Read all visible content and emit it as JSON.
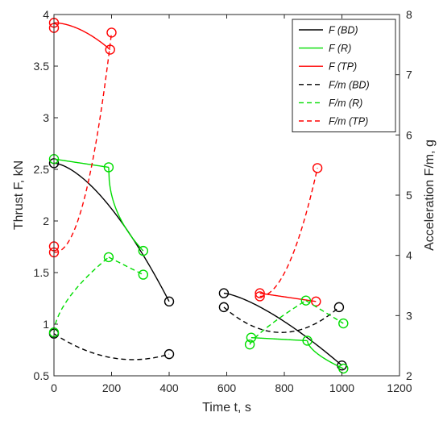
{
  "chart_data": {
    "type": "line",
    "xlabel": "Time  t, s",
    "ylabel_left": "Thrust  F, kN",
    "ylabel_right": "Acceleration  F/m, g",
    "xlim": [
      0,
      1200
    ],
    "ylim_left": [
      0.5,
      4
    ],
    "ylim_right": [
      2,
      8
    ],
    "xticks": [
      "0",
      "200",
      "400",
      "600",
      "800",
      "1000",
      "1200"
    ],
    "yticks_left": [
      "0.5",
      "1",
      "1.5",
      "2",
      "2.5",
      "3",
      "3.5",
      "4"
    ],
    "yticks_right": [
      "2",
      "3",
      "4",
      "5",
      "6",
      "7",
      "8"
    ],
    "legend_position": "top-right",
    "colors": {
      "BD": "#000000",
      "R": "#00dd00",
      "TP": "#ff0000"
    },
    "series": [
      {
        "name": "F (BD)",
        "axis": "left",
        "color": "#000000",
        "dash": "solid",
        "segments": [
          {
            "x": [
              0,
              400
            ],
            "y": [
              2.56,
              1.22
            ],
            "curve": 1.6
          },
          {
            "x": [
              590,
              1000
            ],
            "y": [
              1.3,
              0.6
            ],
            "curve": 1.4
          }
        ],
        "markers": [
          [
            0,
            2.56
          ],
          [
            400,
            1.22
          ],
          [
            590,
            1.3
          ],
          [
            1000,
            0.6
          ]
        ]
      },
      {
        "name": "F (R)",
        "axis": "left",
        "color": "#00dd00",
        "dash": "solid",
        "segments": [
          {
            "x": [
              0,
              190
            ],
            "y": [
              2.6,
              2.52
            ],
            "curve": 1.0
          },
          {
            "x": [
              190,
              310
            ],
            "y": [
              2.52,
              1.71
            ],
            "curve": 0.45
          },
          {
            "x": [
              685,
              880
            ],
            "y": [
              0.87,
              0.84
            ],
            "curve": 1.0
          },
          {
            "x": [
              880,
              1005
            ],
            "y": [
              0.84,
              0.57
            ],
            "curve": 0.6
          }
        ],
        "markers": [
          [
            0,
            2.6
          ],
          [
            190,
            2.52
          ],
          [
            310,
            1.71
          ],
          [
            685,
            0.87
          ],
          [
            880,
            0.84
          ],
          [
            1005,
            0.57
          ]
        ]
      },
      {
        "name": "F (TP)",
        "axis": "left",
        "color": "#ff0000",
        "dash": "solid",
        "segments": [
          {
            "x": [
              0,
              195
            ],
            "y": [
              3.92,
              3.66
            ],
            "curve": 1.8
          },
          {
            "x": [
              715,
              910
            ],
            "y": [
              1.3,
              1.22
            ],
            "curve": 1.0
          }
        ],
        "markers": [
          [
            0,
            3.92
          ],
          [
            0,
            3.87
          ],
          [
            195,
            3.66
          ],
          [
            715,
            1.3
          ],
          [
            910,
            1.22
          ]
        ]
      },
      {
        "name": "F/m (BD)",
        "axis": "right",
        "color": "#000000",
        "dash": "dashed",
        "segments": [
          {
            "x": [
              0,
              230,
              400
            ],
            "y": [
              2.7,
              2.28,
              2.36
            ],
            "curve": "quad"
          },
          {
            "x": [
              590,
              990
            ],
            "y": [
              3.14,
              3.14
            ],
            "curve": "sag",
            "sag": -0.42
          }
        ],
        "markers": [
          [
            0,
            2.7
          ],
          [
            400,
            2.36
          ],
          [
            590,
            3.14
          ],
          [
            990,
            3.14
          ]
        ]
      },
      {
        "name": "F/m (R)",
        "axis": "right",
        "color": "#00dd00",
        "dash": "dashed",
        "segments": [
          {
            "x": [
              0,
              190
            ],
            "y": [
              2.72,
              3.97
            ],
            "curve": 0.6
          },
          {
            "x": [
              190,
              310
            ],
            "y": [
              3.97,
              3.68
            ],
            "curve": 1.0
          },
          {
            "x": [
              680,
              875
            ],
            "y": [
              2.52,
              3.25
            ],
            "curve": 0.8
          },
          {
            "x": [
              875,
              1005
            ],
            "y": [
              3.25,
              2.87
            ],
            "curve": 1.0
          }
        ],
        "markers": [
          [
            0,
            2.72
          ],
          [
            190,
            3.97
          ],
          [
            310,
            3.68
          ],
          [
            680,
            2.52
          ],
          [
            875,
            3.25
          ],
          [
            1005,
            2.87
          ]
        ]
      },
      {
        "name": "F/m (TP)",
        "axis": "right",
        "color": "#ff0000",
        "dash": "dashed",
        "segments": [
          {
            "x": [
              0,
              200
            ],
            "y": [
              4.05,
              7.7
            ],
            "curve": 2.2
          },
          {
            "x": [
              715,
              915
            ],
            "y": [
              3.32,
              5.45
            ],
            "curve": 2.0
          }
        ],
        "markers": [
          [
            0,
            4.05
          ],
          [
            0,
            4.15
          ],
          [
            200,
            7.7
          ],
          [
            715,
            3.32
          ],
          [
            915,
            5.45
          ]
        ]
      }
    ]
  }
}
